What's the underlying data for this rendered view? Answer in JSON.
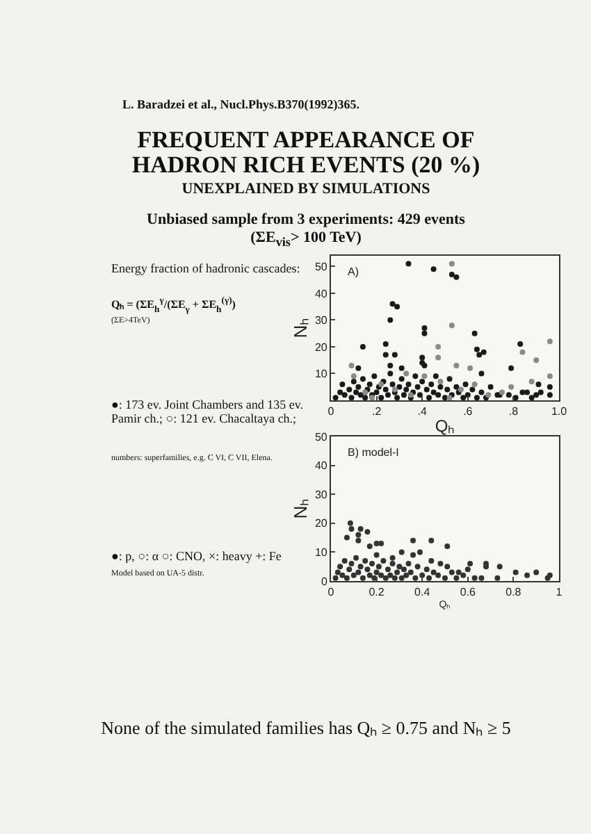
{
  "chart_data": [
    {
      "type": "scatter",
      "title": "FREQUENT APPEARANCE OF HADRON RICH EVENTS (20 %)",
      "subtitle": "UNEXPLAINED BY SIMULATIONS",
      "xlabel": "Qₕ",
      "ylabel": "Nₕ",
      "annotations": [
        "L. Baradzei et al., Nucl.Phys.B370(1992)365.",
        "Unbiased sample from 3 experiments: 429 events",
        "(ΣE$_{vis}$> 100 TeV)",
        "Energy fraction of hadronic cascades:",
        "Qₕ = (ΣE$_{h}$$^{γ}$/(ΣE$_{γ}$ + ΣE$_{h}$$^{(γ)}$)",
        "(ΣE>4TeV)",
        "●: 173 ev. Joint Chambers and 135 ev. Pamir ch.; ○: 121 ev. Chacaltaya ch.;",
        "numbers: superfamilies, e.g. C VI, C VII, Elena.",
        "A)"
      ],
      "xlim": [
        0,
        1
      ],
      "xticks": [
        0,
        {
          "value": 0.2,
          "label": ".2"
        },
        {
          "value": 0.4,
          "label": ".4"
        },
        {
          "value": 0.6,
          "label": ".6"
        },
        {
          "value": 0.8,
          "label": ".8"
        },
        {
          "value": 1,
          "label": "1.0"
        }
      ],
      "ylim": [
        0,
        54
      ],
      "yticks": [
        10,
        20,
        30,
        40,
        50
      ],
      "marker": "circle",
      "series": [
        {
          "color": "#1a1a1a",
          "x": [
            0.34,
            0.45,
            0.53,
            0.55,
            0.27,
            0.29,
            0.26,
            0.41,
            0.63,
            0.24,
            0.14,
            0.64,
            0.65,
            0.67,
            0.83,
            0.24,
            0.28,
            0.12,
            0.26,
            0.31,
            0.4,
            0.4,
            0.41,
            0.79,
            0.66,
            0.91,
            0.92,
            0.96,
            0.96,
            0.73,
            0.78,
            0.84,
            0.41,
            0.02,
            0.04,
            0.05,
            0.06,
            0.08,
            0.09,
            0.1,
            0.11,
            0.12,
            0.13,
            0.14,
            0.15,
            0.16,
            0.17,
            0.18,
            0.19,
            0.2,
            0.21,
            0.22,
            0.23,
            0.24,
            0.25,
            0.26,
            0.27,
            0.28,
            0.29,
            0.3,
            0.31,
            0.32,
            0.33,
            0.34,
            0.35,
            0.36,
            0.37,
            0.38,
            0.39,
            0.4,
            0.42,
            0.43,
            0.44,
            0.45,
            0.46,
            0.47,
            0.48,
            0.5,
            0.51,
            0.52,
            0.53,
            0.55,
            0.56,
            0.58,
            0.59,
            0.6,
            0.62,
            0.64,
            0.66,
            0.68,
            0.7,
            0.74,
            0.81,
            0.86,
            0.88,
            0.9
          ],
          "values": [
            51,
            49,
            47,
            46,
            36,
            35,
            30,
            25,
            25,
            21,
            20,
            19,
            17,
            18,
            21,
            17,
            17,
            12,
            13,
            12,
            14,
            16,
            13,
            12,
            10,
            6,
            3,
            5,
            2,
            2,
            2,
            3,
            27,
            1,
            3,
            6,
            2,
            4,
            1,
            7,
            3,
            5,
            2,
            8,
            1,
            4,
            6,
            2,
            9,
            3,
            5,
            1,
            7,
            4,
            2,
            10,
            6,
            3,
            1,
            5,
            8,
            2,
            4,
            6,
            1,
            3,
            9,
            5,
            2,
            7,
            4,
            1,
            6,
            3,
            9,
            2,
            5,
            1,
            4,
            8,
            2,
            5,
            3,
            1,
            6,
            2,
            4,
            1,
            3,
            1,
            5,
            2,
            1,
            3,
            1,
            2
          ]
        },
        {
          "color": "#8a8a8a",
          "x": [
            0.53,
            0.53,
            0.47,
            0.84,
            0.96,
            0.9,
            0.09,
            0.47,
            0.55,
            0.61,
            0.96,
            0.88,
            0.79,
            0.15,
            0.22,
            0.28,
            0.35,
            0.41,
            0.48,
            0.57,
            0.63,
            0.69,
            0.75,
            0.1,
            0.33,
            0.18,
            0.52
          ],
          "values": [
            51,
            28,
            20,
            18,
            22,
            15,
            13,
            16,
            13,
            12,
            9,
            7,
            5,
            3,
            6,
            4,
            2,
            9,
            7,
            4,
            6,
            2,
            3,
            9,
            10,
            1,
            1
          ]
        }
      ]
    },
    {
      "type": "scatter",
      "xlabel": "Qₕ",
      "ylabel": "Nₕ",
      "annotations": [
        "●: p, ○: α ○: CNO, ×: heavy +: Fe",
        "Model based on UA-5 distr.",
        "B) model-I",
        "None of the simulated families has Qₕ ≥ 0.75 and Nₕ ≥ 5"
      ],
      "xlim": [
        0,
        1
      ],
      "xticks": [
        0,
        0.2,
        0.4,
        0.6,
        0.8,
        1
      ],
      "ylim": [
        0,
        50
      ],
      "yticks": [
        0,
        10,
        20,
        30,
        40,
        50
      ],
      "marker": "circle",
      "series": [
        {
          "color": "#333333",
          "x": [
            0.085,
            0.09,
            0.13,
            0.16,
            0.07,
            0.12,
            0.12,
            0.2,
            0.22,
            0.17,
            0.36,
            0.44,
            0.51,
            0.31,
            0.39,
            0.36,
            0.2,
            0.27,
            0.34,
            0.44,
            0.61,
            0.68,
            0.68,
            0.74,
            0.51,
            0.56,
            0.81,
            0.86,
            0.9,
            0.95,
            0.66,
            0.73,
            0.96,
            0.02,
            0.03,
            0.04,
            0.05,
            0.06,
            0.07,
            0.08,
            0.09,
            0.1,
            0.11,
            0.12,
            0.13,
            0.14,
            0.15,
            0.16,
            0.17,
            0.18,
            0.19,
            0.2,
            0.21,
            0.22,
            0.23,
            0.24,
            0.25,
            0.26,
            0.27,
            0.28,
            0.29,
            0.3,
            0.31,
            0.32,
            0.33,
            0.35,
            0.37,
            0.38,
            0.4,
            0.42,
            0.43,
            0.45,
            0.47,
            0.48,
            0.5,
            0.53,
            0.55,
            0.58,
            0.6,
            0.63
          ],
          "values": [
            20,
            18,
            18,
            17,
            15,
            16,
            14,
            13,
            13,
            12,
            14,
            14,
            12,
            10,
            10,
            9,
            9,
            8,
            6,
            7,
            6,
            6,
            5,
            5,
            5,
            3,
            3,
            2,
            3,
            1,
            1,
            1,
            2,
            1,
            3,
            5,
            2,
            7,
            1,
            4,
            6,
            2,
            8,
            3,
            5,
            1,
            7,
            4,
            2,
            6,
            1,
            3,
            5,
            2,
            7,
            1,
            4,
            2,
            6,
            1,
            3,
            5,
            1,
            4,
            2,
            3,
            1,
            5,
            2,
            4,
            1,
            3,
            2,
            6,
            1,
            3,
            1,
            2,
            4,
            1
          ]
        }
      ]
    }
  ]
}
